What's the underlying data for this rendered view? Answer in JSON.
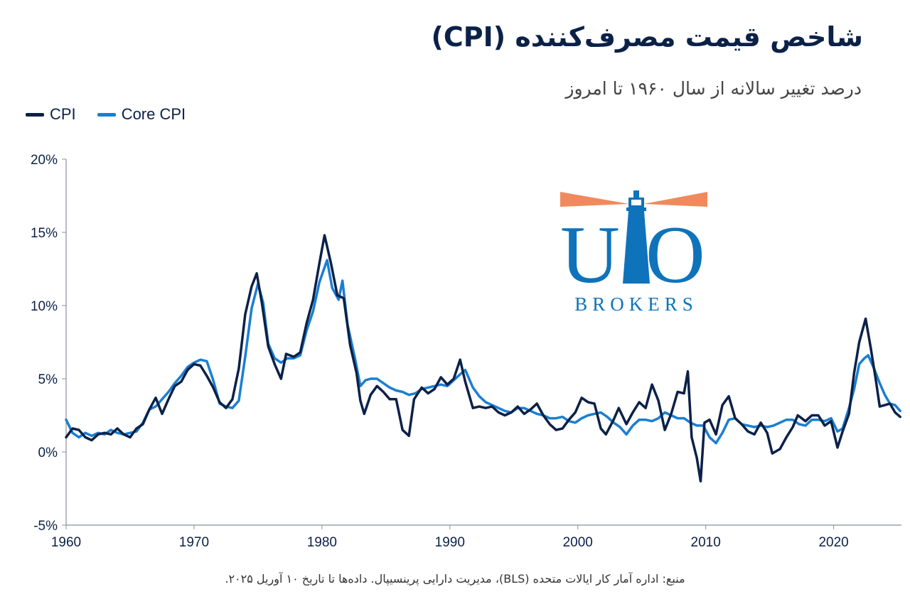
{
  "header": {
    "title": "شاخص قیمت مصرف‌کننده (CPI)",
    "subtitle": "درصد تغییر سالانه از سال ۱۹۶۰ تا امروز"
  },
  "footer": {
    "source": "منبع: اداره آمار کار ایالات متحده (BLS)، مدیریت دارایی پرینسیپال. داده‌ها تا تاریخ ۱۰ آوریل ۲۰۲۵."
  },
  "logo": {
    "text": "BROKERS",
    "icon": "lighthouse-icon",
    "color": "#0e73bb",
    "beam_color": "#f08a5d"
  },
  "chart_data": {
    "type": "line",
    "title": "شاخص قیمت مصرف‌کننده (CPI)",
    "subtitle": "درصد تغییر سالانه از سال ۱۹۶۰ تا امروز",
    "xlabel": "",
    "ylabel": "",
    "xlim": [
      1960,
      2025.3
    ],
    "ylim": [
      -5,
      20
    ],
    "x_ticks": [
      1960,
      1970,
      1980,
      1990,
      2000,
      2010,
      2020
    ],
    "y_ticks": [
      -5,
      0,
      5,
      10,
      15,
      20
    ],
    "y_tick_labels": [
      "-5%",
      "0%",
      "5%",
      "10%",
      "15%",
      "20%"
    ],
    "grid": false,
    "legend_position": "top-left",
    "series": [
      {
        "name": "CPI",
        "color": "#0b2148",
        "points": [
          [
            1960.0,
            1.0
          ],
          [
            1960.5,
            1.6
          ],
          [
            1961.0,
            1.5
          ],
          [
            1961.5,
            1.0
          ],
          [
            1962.0,
            0.8
          ],
          [
            1962.5,
            1.2
          ],
          [
            1963.0,
            1.3
          ],
          [
            1963.5,
            1.2
          ],
          [
            1964.0,
            1.6
          ],
          [
            1964.5,
            1.2
          ],
          [
            1965.0,
            1.0
          ],
          [
            1965.5,
            1.6
          ],
          [
            1966.0,
            1.9
          ],
          [
            1966.5,
            2.9
          ],
          [
            1967.0,
            3.7
          ],
          [
            1967.5,
            2.6
          ],
          [
            1968.0,
            3.6
          ],
          [
            1968.5,
            4.5
          ],
          [
            1969.0,
            4.8
          ],
          [
            1969.5,
            5.6
          ],
          [
            1970.0,
            6.0
          ],
          [
            1970.5,
            5.9
          ],
          [
            1971.0,
            5.2
          ],
          [
            1971.5,
            4.4
          ],
          [
            1972.0,
            3.4
          ],
          [
            1972.5,
            3.0
          ],
          [
            1973.0,
            3.6
          ],
          [
            1973.5,
            5.7
          ],
          [
            1974.0,
            9.4
          ],
          [
            1974.5,
            11.3
          ],
          [
            1974.9,
            12.2
          ],
          [
            1975.3,
            10.2
          ],
          [
            1975.8,
            7.2
          ],
          [
            1976.3,
            6.0
          ],
          [
            1976.8,
            5.0
          ],
          [
            1977.2,
            6.7
          ],
          [
            1977.8,
            6.5
          ],
          [
            1978.3,
            6.8
          ],
          [
            1978.8,
            8.8
          ],
          [
            1979.3,
            10.4
          ],
          [
            1979.8,
            12.9
          ],
          [
            1980.2,
            14.8
          ],
          [
            1980.7,
            12.9
          ],
          [
            1981.2,
            10.7
          ],
          [
            1981.7,
            10.5
          ],
          [
            1982.2,
            7.3
          ],
          [
            1982.7,
            5.4
          ],
          [
            1983.0,
            3.5
          ],
          [
            1983.3,
            2.6
          ],
          [
            1983.8,
            3.9
          ],
          [
            1984.3,
            4.5
          ],
          [
            1984.8,
            4.1
          ],
          [
            1985.3,
            3.6
          ],
          [
            1985.8,
            3.6
          ],
          [
            1986.3,
            1.5
          ],
          [
            1986.8,
            1.1
          ],
          [
            1987.2,
            3.6
          ],
          [
            1987.8,
            4.4
          ],
          [
            1988.3,
            4.0
          ],
          [
            1988.8,
            4.3
          ],
          [
            1989.3,
            5.1
          ],
          [
            1989.8,
            4.6
          ],
          [
            1990.3,
            5.0
          ],
          [
            1990.8,
            6.3
          ],
          [
            1991.2,
            4.8
          ],
          [
            1991.8,
            3.0
          ],
          [
            1992.3,
            3.1
          ],
          [
            1992.8,
            3.0
          ],
          [
            1993.3,
            3.1
          ],
          [
            1993.8,
            2.7
          ],
          [
            1994.3,
            2.5
          ],
          [
            1994.8,
            2.7
          ],
          [
            1995.3,
            3.1
          ],
          [
            1995.8,
            2.6
          ],
          [
            1996.3,
            2.9
          ],
          [
            1996.8,
            3.3
          ],
          [
            1997.3,
            2.5
          ],
          [
            1997.8,
            1.9
          ],
          [
            1998.3,
            1.5
          ],
          [
            1998.8,
            1.6
          ],
          [
            1999.3,
            2.2
          ],
          [
            1999.8,
            2.7
          ],
          [
            2000.3,
            3.7
          ],
          [
            2000.8,
            3.4
          ],
          [
            2001.3,
            3.3
          ],
          [
            2001.8,
            1.6
          ],
          [
            2002.2,
            1.2
          ],
          [
            2002.8,
            2.2
          ],
          [
            2003.2,
            3.0
          ],
          [
            2003.8,
            1.9
          ],
          [
            2004.3,
            2.7
          ],
          [
            2004.8,
            3.4
          ],
          [
            2005.3,
            3.0
          ],
          [
            2005.8,
            4.6
          ],
          [
            2006.3,
            3.5
          ],
          [
            2006.8,
            1.5
          ],
          [
            2007.3,
            2.6
          ],
          [
            2007.8,
            4.1
          ],
          [
            2008.3,
            4.0
          ],
          [
            2008.6,
            5.5
          ],
          [
            2008.9,
            1.0
          ],
          [
            2009.3,
            -0.4
          ],
          [
            2009.6,
            -2.0
          ],
          [
            2009.9,
            2.0
          ],
          [
            2010.3,
            2.2
          ],
          [
            2010.8,
            1.2
          ],
          [
            2011.3,
            3.2
          ],
          [
            2011.8,
            3.8
          ],
          [
            2012.3,
            2.3
          ],
          [
            2012.8,
            1.9
          ],
          [
            2013.3,
            1.4
          ],
          [
            2013.8,
            1.2
          ],
          [
            2014.3,
            2.0
          ],
          [
            2014.8,
            1.3
          ],
          [
            2015.2,
            -0.1
          ],
          [
            2015.8,
            0.2
          ],
          [
            2016.3,
            1.0
          ],
          [
            2016.8,
            1.7
          ],
          [
            2017.2,
            2.5
          ],
          [
            2017.8,
            2.1
          ],
          [
            2018.3,
            2.5
          ],
          [
            2018.8,
            2.5
          ],
          [
            2019.3,
            1.8
          ],
          [
            2019.8,
            2.1
          ],
          [
            2020.3,
            0.3
          ],
          [
            2020.7,
            1.4
          ],
          [
            2021.2,
            2.6
          ],
          [
            2021.6,
            5.4
          ],
          [
            2022.0,
            7.5
          ],
          [
            2022.5,
            9.1
          ],
          [
            2022.9,
            7.1
          ],
          [
            2023.3,
            4.9
          ],
          [
            2023.6,
            3.1
          ],
          [
            2024.0,
            3.2
          ],
          [
            2024.4,
            3.3
          ],
          [
            2024.8,
            2.7
          ],
          [
            2025.2,
            2.4
          ]
        ]
      },
      {
        "name": "Core CPI",
        "color": "#1a7fd1",
        "points": [
          [
            1960.0,
            2.2
          ],
          [
            1960.5,
            1.3
          ],
          [
            1961.0,
            1.0
          ],
          [
            1961.5,
            1.3
          ],
          [
            1962.0,
            1.1
          ],
          [
            1962.5,
            1.3
          ],
          [
            1963.0,
            1.2
          ],
          [
            1963.5,
            1.5
          ],
          [
            1964.0,
            1.3
          ],
          [
            1964.5,
            1.2
          ],
          [
            1965.0,
            1.3
          ],
          [
            1965.5,
            1.4
          ],
          [
            1966.0,
            2.0
          ],
          [
            1966.5,
            2.9
          ],
          [
            1967.0,
            3.1
          ],
          [
            1967.5,
            3.6
          ],
          [
            1968.0,
            4.1
          ],
          [
            1968.5,
            4.7
          ],
          [
            1969.0,
            5.2
          ],
          [
            1969.5,
            5.8
          ],
          [
            1970.0,
            6.1
          ],
          [
            1970.5,
            6.3
          ],
          [
            1971.0,
            6.2
          ],
          [
            1971.5,
            4.9
          ],
          [
            1972.0,
            3.3
          ],
          [
            1972.5,
            3.1
          ],
          [
            1973.0,
            3.0
          ],
          [
            1973.5,
            3.5
          ],
          [
            1974.0,
            6.5
          ],
          [
            1974.5,
            9.8
          ],
          [
            1975.0,
            11.5
          ],
          [
            1975.4,
            10.2
          ],
          [
            1975.8,
            7.4
          ],
          [
            1976.3,
            6.4
          ],
          [
            1976.8,
            6.1
          ],
          [
            1977.3,
            6.4
          ],
          [
            1977.8,
            6.4
          ],
          [
            1978.3,
            6.6
          ],
          [
            1978.8,
            8.3
          ],
          [
            1979.3,
            9.6
          ],
          [
            1979.8,
            11.6
          ],
          [
            1980.4,
            13.1
          ],
          [
            1980.8,
            11.2
          ],
          [
            1981.3,
            10.4
          ],
          [
            1981.6,
            11.7
          ],
          [
            1982.0,
            8.7
          ],
          [
            1982.6,
            6.3
          ],
          [
            1983.0,
            4.5
          ],
          [
            1983.4,
            4.9
          ],
          [
            1983.8,
            5.0
          ],
          [
            1984.3,
            5.0
          ],
          [
            1984.8,
            4.7
          ],
          [
            1985.3,
            4.4
          ],
          [
            1985.8,
            4.2
          ],
          [
            1986.3,
            4.1
          ],
          [
            1986.8,
            3.9
          ],
          [
            1987.3,
            4.0
          ],
          [
            1987.8,
            4.3
          ],
          [
            1988.3,
            4.4
          ],
          [
            1988.8,
            4.5
          ],
          [
            1989.3,
            4.6
          ],
          [
            1989.8,
            4.5
          ],
          [
            1990.3,
            4.9
          ],
          [
            1990.8,
            5.3
          ],
          [
            1991.2,
            5.6
          ],
          [
            1991.8,
            4.4
          ],
          [
            1992.3,
            3.8
          ],
          [
            1992.8,
            3.4
          ],
          [
            1993.3,
            3.2
          ],
          [
            1993.8,
            3.0
          ],
          [
            1994.3,
            2.8
          ],
          [
            1994.8,
            2.7
          ],
          [
            1995.3,
            3.0
          ],
          [
            1995.8,
            3.0
          ],
          [
            1996.3,
            2.8
          ],
          [
            1996.8,
            2.6
          ],
          [
            1997.3,
            2.5
          ],
          [
            1997.8,
            2.3
          ],
          [
            1998.3,
            2.3
          ],
          [
            1998.8,
            2.4
          ],
          [
            1999.3,
            2.1
          ],
          [
            1999.8,
            2.0
          ],
          [
            2000.3,
            2.3
          ],
          [
            2000.8,
            2.5
          ],
          [
            2001.3,
            2.6
          ],
          [
            2001.8,
            2.7
          ],
          [
            2002.3,
            2.4
          ],
          [
            2002.8,
            2.0
          ],
          [
            2003.3,
            1.7
          ],
          [
            2003.8,
            1.2
          ],
          [
            2004.3,
            1.8
          ],
          [
            2004.8,
            2.2
          ],
          [
            2005.3,
            2.2
          ],
          [
            2005.8,
            2.1
          ],
          [
            2006.3,
            2.3
          ],
          [
            2006.8,
            2.7
          ],
          [
            2007.3,
            2.5
          ],
          [
            2007.8,
            2.3
          ],
          [
            2008.3,
            2.3
          ],
          [
            2008.8,
            2.0
          ],
          [
            2009.3,
            1.8
          ],
          [
            2009.8,
            1.8
          ],
          [
            2010.3,
            1.0
          ],
          [
            2010.8,
            0.6
          ],
          [
            2011.3,
            1.3
          ],
          [
            2011.8,
            2.2
          ],
          [
            2012.3,
            2.3
          ],
          [
            2012.8,
            1.9
          ],
          [
            2013.3,
            1.8
          ],
          [
            2013.8,
            1.7
          ],
          [
            2014.3,
            1.8
          ],
          [
            2014.8,
            1.7
          ],
          [
            2015.3,
            1.8
          ],
          [
            2015.8,
            2.0
          ],
          [
            2016.3,
            2.2
          ],
          [
            2016.8,
            2.2
          ],
          [
            2017.3,
            1.9
          ],
          [
            2017.8,
            1.8
          ],
          [
            2018.3,
            2.2
          ],
          [
            2018.8,
            2.2
          ],
          [
            2019.3,
            2.1
          ],
          [
            2019.8,
            2.3
          ],
          [
            2020.3,
            1.4
          ],
          [
            2020.7,
            1.6
          ],
          [
            2021.2,
            3.0
          ],
          [
            2021.6,
            4.3
          ],
          [
            2022.0,
            6.0
          ],
          [
            2022.4,
            6.4
          ],
          [
            2022.7,
            6.6
          ],
          [
            2023.2,
            5.6
          ],
          [
            2023.6,
            4.7
          ],
          [
            2024.0,
            3.9
          ],
          [
            2024.4,
            3.3
          ],
          [
            2024.8,
            3.2
          ],
          [
            2025.2,
            2.8
          ]
        ]
      }
    ]
  }
}
